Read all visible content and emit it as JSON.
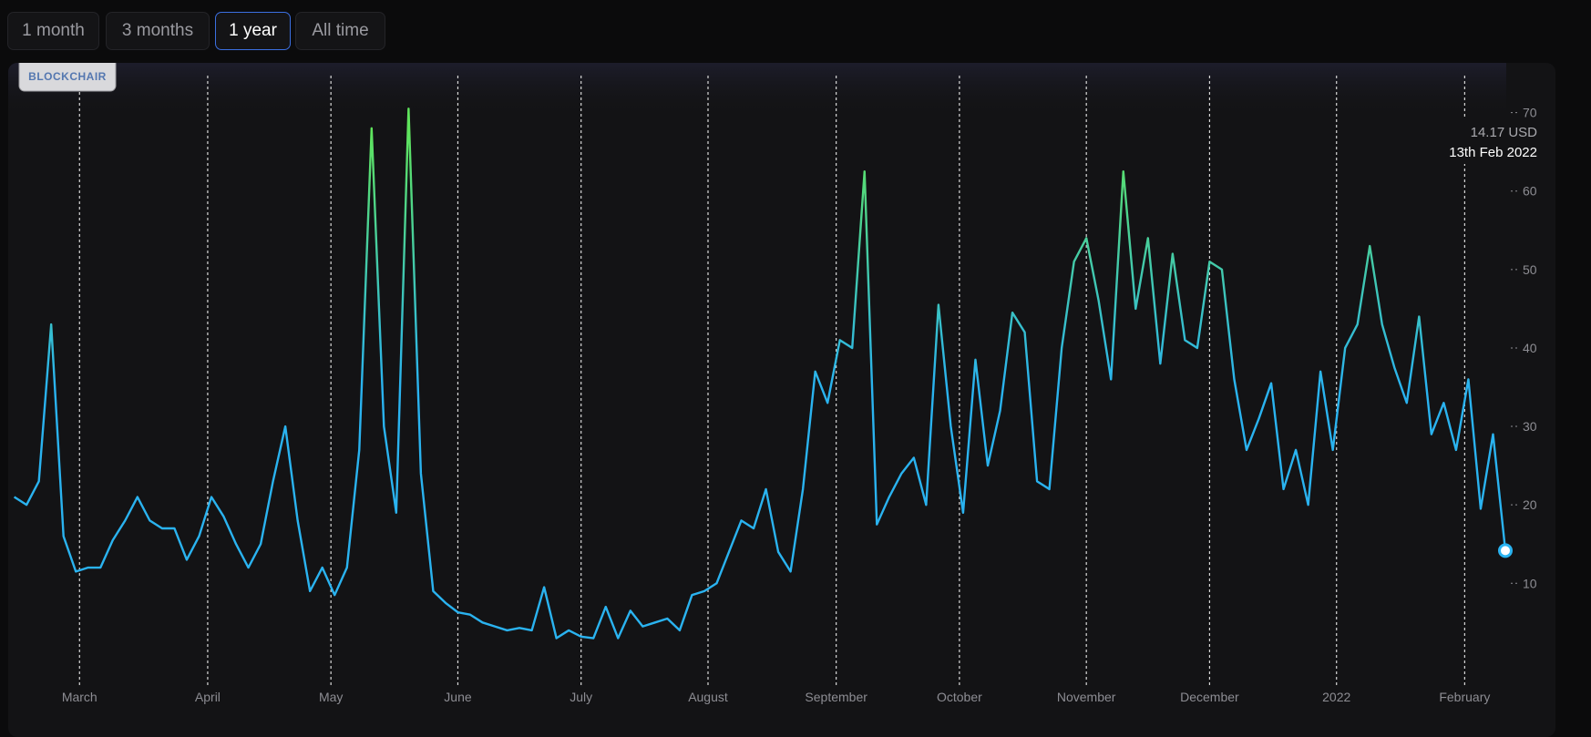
{
  "ranges": [
    "1 month",
    "3 months",
    "1 year",
    "All time"
  ],
  "selected_range": 2,
  "brand": "BLOCKCHAIR",
  "chart_data": {
    "type": "line",
    "tooltip_value": "14.17 USD",
    "tooltip_date": "13th Feb 2022",
    "color": "#2ab3f0",
    "high_color": "#5fe45c",
    "grid": true,
    "xlim": [
      0,
      121
    ],
    "xticks": [
      {
        "value": 5.3,
        "label": "March"
      },
      {
        "value": 15.7,
        "label": "April"
      },
      {
        "value": 25.7,
        "label": "May"
      },
      {
        "value": 36,
        "label": "June"
      },
      {
        "value": 46,
        "label": "July"
      },
      {
        "value": 56.3,
        "label": "August"
      },
      {
        "value": 66.7,
        "label": "September"
      },
      {
        "value": 76.7,
        "label": "October"
      },
      {
        "value": 87,
        "label": "November"
      },
      {
        "value": 97,
        "label": "December"
      },
      {
        "value": 107.3,
        "label": "2022"
      },
      {
        "value": 117.7,
        "label": "February"
      }
    ],
    "ylim": [
      -3,
      73
    ],
    "yticks": [
      10,
      20,
      30,
      40,
      50,
      60,
      70
    ],
    "values": [
      21,
      20,
      23,
      43,
      16,
      11.5,
      12,
      12,
      15.5,
      18,
      21,
      18,
      17,
      17,
      13,
      16,
      21,
      18.5,
      15,
      12,
      15,
      23,
      30,
      18,
      9,
      12,
      8.5,
      12,
      27,
      68,
      30,
      19,
      70.5,
      24,
      9,
      7.5,
      6.3,
      6,
      5,
      4.5,
      4,
      4.3,
      4,
      9.5,
      3,
      4,
      3.2,
      3,
      7,
      3,
      6.5,
      4.5,
      5,
      5.5,
      4,
      8.5,
      9,
      10,
      14,
      18,
      17,
      22,
      14,
      11.5,
      22,
      37,
      33,
      41,
      40,
      62.5,
      17.5,
      21,
      24,
      26,
      20,
      45.5,
      30,
      19,
      38.5,
      25,
      32,
      44.5,
      42,
      23,
      22,
      40,
      51,
      54,
      46,
      36,
      62.5,
      45,
      54,
      38,
      52,
      41,
      40,
      51,
      50,
      36,
      27,
      31,
      35.5,
      22,
      27,
      20,
      37,
      27,
      40,
      43,
      53,
      43,
      37.5,
      33,
      44,
      29,
      33,
      27,
      36,
      19.5,
      29,
      14.17
    ]
  }
}
